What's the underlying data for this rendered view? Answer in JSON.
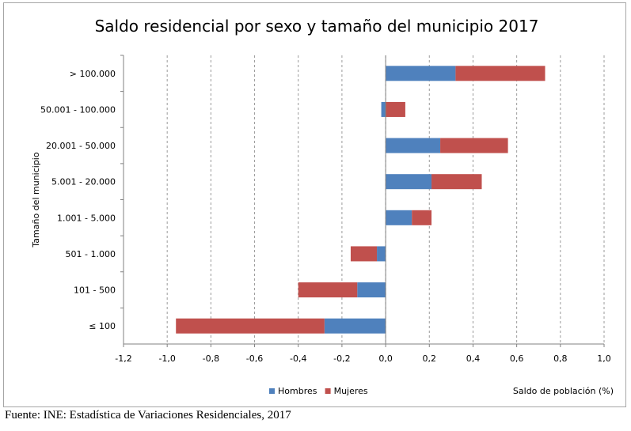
{
  "source_note": "Fuente: INE: Estadística de Variaciones Residenciales, 2017",
  "chart_data": {
    "type": "bar",
    "orientation": "horizontal",
    "stacked": true,
    "title": "Saldo residencial por sexo y tamaño del municipio 2017",
    "xlabel": "Saldo de población (%)",
    "ylabel": "Tamaño del municipio",
    "xlim": [
      -1.2,
      1.0
    ],
    "x_ticks": [
      -1.2,
      -1.0,
      -0.8,
      -0.6,
      -0.4,
      -0.2,
      0.0,
      0.2,
      0.4,
      0.6,
      0.8,
      1.0
    ],
    "x_tick_labels": [
      "-1,2",
      "-1,0",
      "-0,8",
      "-0,6",
      "-0,4",
      "-0,2",
      "0,0",
      "0,2",
      "0,4",
      "0,6",
      "0,8",
      "1,0"
    ],
    "grid": "vertical dashed",
    "legend_position": "bottom",
    "categories": [
      "> 100.000",
      "50.001 - 100.000",
      "20.001 - 50.000",
      "5.001 - 20.000",
      "1.001 - 5.000",
      "501 - 1.000",
      "101 - 500",
      "≤ 100"
    ],
    "series": [
      {
        "name": "Hombres",
        "color": "#4f81bd",
        "values": [
          0.32,
          -0.02,
          0.25,
          0.21,
          0.12,
          -0.04,
          -0.13,
          -0.28
        ]
      },
      {
        "name": "Mujeres",
        "color": "#c0504d",
        "values": [
          0.41,
          0.09,
          0.31,
          0.23,
          0.09,
          -0.12,
          -0.27,
          -0.68
        ]
      }
    ]
  }
}
